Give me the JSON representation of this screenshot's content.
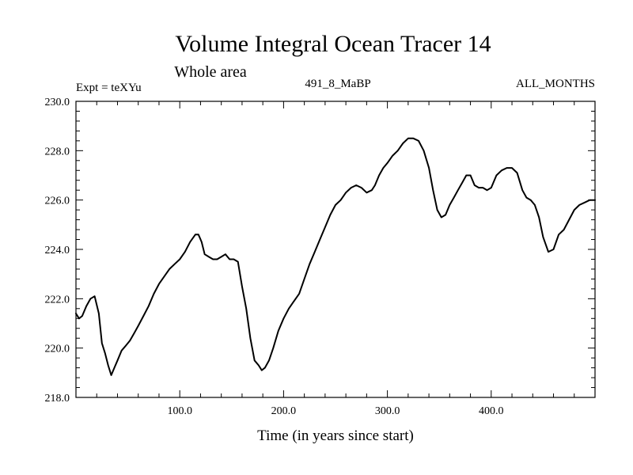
{
  "chart_data": {
    "type": "line",
    "title": "Volume Integral Ocean Tracer 14",
    "subtitle": "Whole area",
    "expt_label": "Expt = teXYu",
    "run_label": "491_8_MaBP",
    "months_label": "ALL_MONTHS",
    "xlabel": "Time (in years since start)",
    "ylabel": "",
    "xlim": [
      0,
      500
    ],
    "ylim": [
      218.0,
      230.0
    ],
    "x_ticks": [
      100,
      200,
      300,
      400
    ],
    "x_tick_labels": [
      "100.0",
      "200.0",
      "300.0",
      "400.0"
    ],
    "y_ticks": [
      218,
      220,
      222,
      224,
      226,
      228,
      230
    ],
    "y_tick_labels": [
      "218.0",
      "220.0",
      "222.0",
      "224.0",
      "226.0",
      "228.0",
      "230.0"
    ],
    "grid": false,
    "line_color": "#000000",
    "series": [
      {
        "x": [
          0,
          3,
          6,
          10,
          14,
          18,
          22,
          25,
          28,
          31,
          34,
          37,
          40,
          44,
          48,
          52,
          56,
          60,
          65,
          70,
          75,
          80,
          85,
          90,
          95,
          100,
          105,
          110,
          115,
          118,
          121,
          124,
          128,
          132,
          136,
          140,
          144,
          148,
          152,
          156,
          160,
          164,
          168,
          172,
          176,
          179,
          182,
          186,
          190,
          195,
          200,
          205,
          210,
          215,
          220,
          225,
          230,
          235,
          240,
          245,
          250,
          255,
          260,
          265,
          270,
          275,
          280,
          285,
          288,
          292,
          296,
          300,
          305,
          310,
          315,
          320,
          325,
          330,
          335,
          340,
          344,
          348,
          352,
          356,
          360,
          364,
          368,
          372,
          376,
          380,
          384,
          388,
          392,
          396,
          400,
          405,
          410,
          415,
          420,
          425,
          430,
          434,
          438,
          442,
          446,
          450,
          455,
          460,
          465,
          470,
          475,
          480,
          485,
          490,
          495,
          500
        ],
        "y": [
          221.4,
          221.2,
          221.3,
          221.7,
          222.0,
          222.1,
          221.4,
          220.2,
          219.8,
          219.3,
          218.9,
          219.2,
          219.5,
          219.9,
          220.1,
          220.3,
          220.6,
          220.9,
          221.3,
          221.7,
          222.2,
          222.6,
          222.9,
          223.2,
          223.4,
          223.6,
          223.9,
          224.3,
          224.6,
          224.6,
          224.3,
          223.8,
          223.7,
          223.6,
          223.6,
          223.7,
          223.8,
          223.6,
          223.6,
          223.5,
          222.5,
          221.6,
          220.4,
          219.5,
          219.3,
          219.1,
          219.2,
          219.5,
          220.0,
          220.7,
          221.2,
          221.6,
          221.9,
          222.2,
          222.8,
          223.4,
          223.9,
          224.4,
          224.9,
          225.4,
          225.8,
          226.0,
          226.3,
          226.5,
          226.6,
          226.5,
          226.3,
          226.4,
          226.6,
          227.0,
          227.3,
          227.5,
          227.8,
          228.0,
          228.3,
          228.5,
          228.5,
          228.4,
          228.0,
          227.3,
          226.4,
          225.6,
          225.3,
          225.4,
          225.8,
          226.1,
          226.4,
          226.7,
          227.0,
          227.0,
          226.6,
          226.5,
          226.5,
          226.4,
          226.5,
          227.0,
          227.2,
          227.3,
          227.3,
          227.1,
          226.4,
          226.1,
          226.0,
          225.8,
          225.3,
          224.5,
          223.9,
          224.0,
          224.6,
          224.8,
          225.2,
          225.6,
          225.8,
          225.9,
          226.0,
          226.0
        ]
      }
    ]
  }
}
